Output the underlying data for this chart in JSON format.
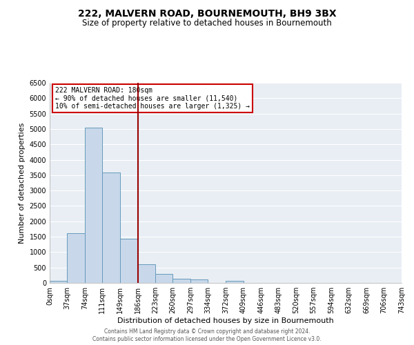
{
  "title": "222, MALVERN ROAD, BOURNEMOUTH, BH9 3BX",
  "subtitle": "Size of property relative to detached houses in Bournemouth",
  "xlabel": "Distribution of detached houses by size in Bournemouth",
  "ylabel": "Number of detached properties",
  "bin_edges": [
    0,
    37,
    74,
    111,
    149,
    186,
    223,
    260,
    297,
    334,
    372,
    409,
    446,
    483,
    520,
    557,
    594,
    632,
    669,
    706,
    743
  ],
  "bar_heights": [
    75,
    1620,
    5050,
    3590,
    1430,
    610,
    300,
    145,
    110,
    5,
    60,
    5,
    0,
    0,
    0,
    0,
    0,
    0,
    0,
    0
  ],
  "bar_color": "#c8d8ea",
  "bar_edge_color": "#6699bb",
  "vline_x": 186,
  "vline_color": "#990000",
  "annotation_text": "222 MALVERN ROAD: 180sqm\n← 90% of detached houses are smaller (11,540)\n10% of semi-detached houses are larger (1,325) →",
  "annotation_box_color": "#ffffff",
  "annotation_box_edge_color": "#cc0000",
  "ylim": [
    0,
    6500
  ],
  "yticks": [
    0,
    500,
    1000,
    1500,
    2000,
    2500,
    3000,
    3500,
    4000,
    4500,
    5000,
    5500,
    6000,
    6500
  ],
  "xtick_labels": [
    "0sqm",
    "37sqm",
    "74sqm",
    "111sqm",
    "149sqm",
    "186sqm",
    "223sqm",
    "260sqm",
    "297sqm",
    "334sqm",
    "372sqm",
    "409sqm",
    "446sqm",
    "483sqm",
    "520sqm",
    "557sqm",
    "594sqm",
    "632sqm",
    "669sqm",
    "706sqm",
    "743sqm"
  ],
  "footer_line1": "Contains HM Land Registry data © Crown copyright and database right 2024.",
  "footer_line2": "Contains public sector information licensed under the Open Government Licence v3.0.",
  "background_color": "#ffffff",
  "plot_bg_color": "#e8eef4",
  "grid_color": "#ffffff",
  "title_fontsize": 10,
  "subtitle_fontsize": 8.5,
  "axis_label_fontsize": 8,
  "tick_fontsize": 7,
  "footer_fontsize": 5.5
}
